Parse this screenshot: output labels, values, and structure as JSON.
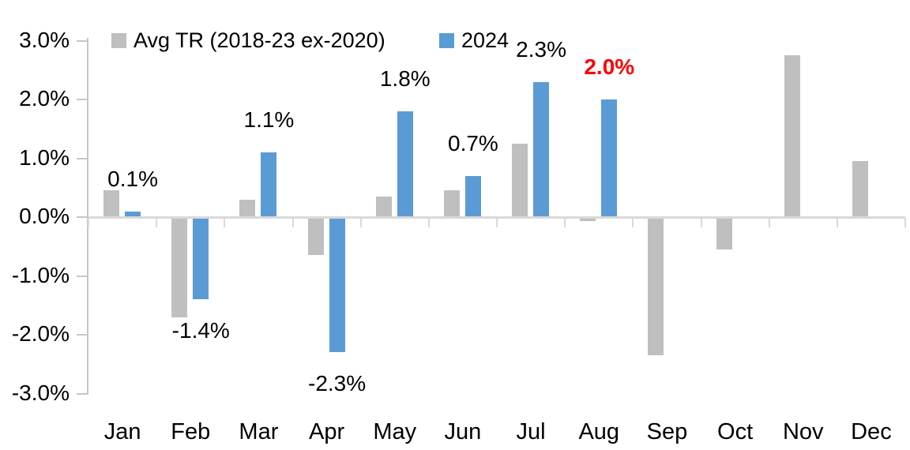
{
  "chart_data": {
    "type": "bar",
    "title": "",
    "categories": [
      "Jan",
      "Feb",
      "Mar",
      "Apr",
      "May",
      "Jun",
      "Jul",
      "Aug",
      "Sep",
      "Oct",
      "Nov",
      "Dec"
    ],
    "series": [
      {
        "name": "Avg TR (2018-23 ex-2020)",
        "color": "#bfbfbf",
        "values": [
          0.45,
          -1.7,
          0.3,
          -0.65,
          0.35,
          0.45,
          1.25,
          -0.07,
          -2.35,
          -0.55,
          2.75,
          0.95
        ]
      },
      {
        "name": "2024",
        "color": "#5b9bd5",
        "values": [
          0.1,
          -1.4,
          1.1,
          -2.3,
          1.8,
          0.7,
          2.3,
          2.0,
          null,
          null,
          null,
          null
        ]
      }
    ],
    "data_labels": [
      {
        "month": "Jan",
        "text": "0.1%",
        "emphasis": false
      },
      {
        "month": "Feb",
        "text": "-1.4%",
        "emphasis": false
      },
      {
        "month": "Mar",
        "text": "1.1%",
        "emphasis": false
      },
      {
        "month": "Apr",
        "text": "-2.3%",
        "emphasis": false
      },
      {
        "month": "May",
        "text": "1.8%",
        "emphasis": false
      },
      {
        "month": "Jun",
        "text": "0.7%",
        "emphasis": false
      },
      {
        "month": "Jul",
        "text": "2.3%",
        "emphasis": false
      },
      {
        "month": "Aug",
        "text": "2.0%",
        "emphasis": true
      }
    ],
    "y_axis": {
      "tick_labels": [
        "3.0%",
        "2.0%",
        "1.0%",
        "0.0%",
        "-1.0%",
        "-2.0%",
        "-3.0%"
      ],
      "tick_values": [
        3,
        2,
        1,
        0,
        -1,
        -2,
        -3
      ],
      "min": -3,
      "max": 3,
      "grid": false
    },
    "legend": {
      "position": "top-left",
      "entries": [
        "Avg TR (2018-23 ex-2020)",
        "2024"
      ]
    },
    "colors": {
      "avg_series": "#bfbfbf",
      "series_2024": "#5b9bd5",
      "axis_line": "#d9d9d9",
      "tick_line": "#c6c6c6",
      "label_text": "#000000",
      "emphasis_label": "#ff0000",
      "background": "#ffffff"
    }
  }
}
